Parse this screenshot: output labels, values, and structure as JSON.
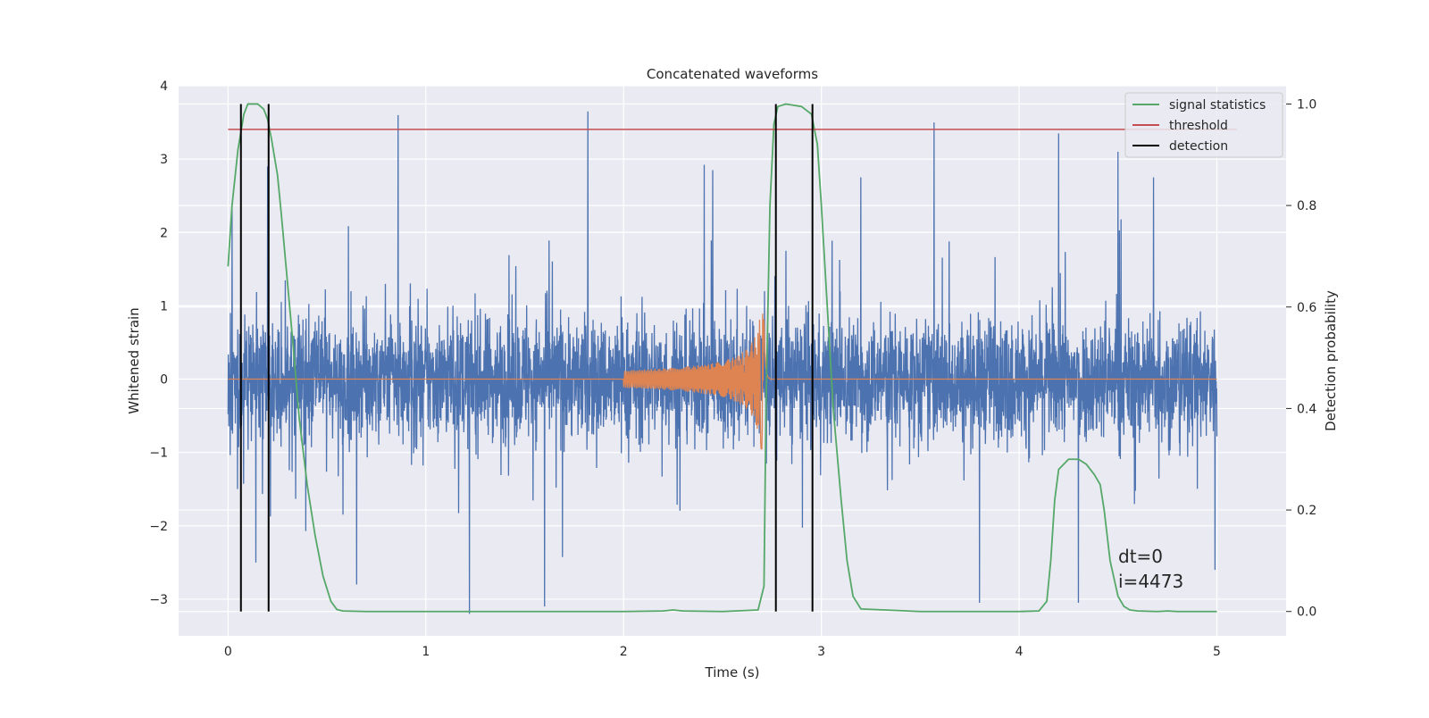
{
  "chart_data": {
    "type": "line",
    "title": "Concatenated waveforms",
    "xlabel": "Time (s)",
    "ylabel": "Whitened strain",
    "y2label": "Detection probability",
    "xlim": [
      -0.25,
      5.35
    ],
    "ylim": [
      -3.5,
      4.0
    ],
    "y2lim": [
      -0.048,
      1.036
    ],
    "x_ticks": [
      0,
      1,
      2,
      3,
      4,
      5
    ],
    "x_tick_labels": [
      "0",
      "1",
      "2",
      "3",
      "4",
      "5"
    ],
    "y_ticks": [
      -3,
      -2,
      -1,
      0,
      1,
      2,
      3,
      4
    ],
    "y_tick_labels": [
      "−3",
      "−2",
      "−1",
      "0",
      "1",
      "2",
      "3",
      "4"
    ],
    "y2_ticks": [
      0.0,
      0.2,
      0.4,
      0.6,
      0.8,
      1.0
    ],
    "y2_tick_labels": [
      "0.0",
      "0.2",
      "0.4",
      "0.6",
      "0.8",
      "1.0"
    ],
    "grid": true,
    "legend_position": "top-right",
    "legend": [
      {
        "label": "signal statistics",
        "color": "#55a868"
      },
      {
        "label": "threshold",
        "color": "#c44e52"
      },
      {
        "label": "detection",
        "color": "#000000"
      }
    ],
    "annotations": [
      "dt=0",
      "i=4473"
    ],
    "colors": {
      "noise": "#4c72b0",
      "injection": "#dd8452",
      "statistic": "#55a868",
      "threshold": "#c44e52",
      "detection": "#000000",
      "plot_background": "#eaeaf2",
      "grid": "#ffffff"
    },
    "series": [
      {
        "kind": "whitened-strain-noise",
        "color": "#4c72b0",
        "x_range": [
          0,
          5
        ],
        "typical_amplitude": 1.5,
        "peaks": [
          {
            "x": 0.02,
            "y": 2.35
          },
          {
            "x": 0.14,
            "y": -2.5
          },
          {
            "x": 0.2,
            "y": 2.9
          },
          {
            "x": 0.65,
            "y": -2.8
          },
          {
            "x": 0.86,
            "y": 3.6
          },
          {
            "x": 1.22,
            "y": -3.2
          },
          {
            "x": 1.6,
            "y": -3.1
          },
          {
            "x": 1.82,
            "y": 3.65
          },
          {
            "x": 2.45,
            "y": 2.85
          },
          {
            "x": 3.2,
            "y": 2.75
          },
          {
            "x": 3.57,
            "y": 3.5
          },
          {
            "x": 3.8,
            "y": -3.05
          },
          {
            "x": 4.2,
            "y": 3.35
          },
          {
            "x": 4.3,
            "y": -3.05
          },
          {
            "x": 4.5,
            "y": 3.1
          },
          {
            "x": 4.68,
            "y": 2.75
          },
          {
            "x": 4.99,
            "y": -2.6
          }
        ]
      },
      {
        "kind": "injected-chirp",
        "color": "#dd8452",
        "x_range": [
          0,
          5
        ],
        "chirp_start": 2.0,
        "chirp_end": 2.71,
        "amplitude_start": 0.12,
        "amplitude_peak": 1.3,
        "amplitude_trough": -0.95
      },
      {
        "name": "signal statistics",
        "axis": "right",
        "color": "#55a868",
        "x": [
          0,
          0.02,
          0.05,
          0.08,
          0.1,
          0.12,
          0.15,
          0.18,
          0.2,
          0.22,
          0.25,
          0.27,
          0.3,
          0.33,
          0.36,
          0.4,
          0.44,
          0.48,
          0.52,
          0.55,
          0.58,
          0.7,
          1.0,
          1.5,
          2.0,
          2.2,
          2.25,
          2.3,
          2.5,
          2.68,
          2.71,
          2.72,
          2.74,
          2.76,
          2.78,
          2.82,
          2.9,
          2.95,
          2.98,
          3.0,
          3.03,
          3.06,
          3.1,
          3.13,
          3.16,
          3.2,
          3.5,
          4.0,
          4.1,
          4.14,
          4.16,
          4.18,
          4.2,
          4.25,
          4.3,
          4.34,
          4.38,
          4.41,
          4.43,
          4.46,
          4.5,
          4.53,
          4.56,
          4.6,
          4.7,
          4.75,
          4.8,
          5.0
        ],
        "y": [
          0.68,
          0.8,
          0.91,
          0.98,
          1.0,
          1.0,
          1.0,
          0.99,
          0.97,
          0.93,
          0.86,
          0.78,
          0.65,
          0.52,
          0.38,
          0.25,
          0.15,
          0.07,
          0.02,
          0.004,
          0.001,
          0.0,
          0.0,
          0.0,
          0.0,
          0.001,
          0.003,
          0.001,
          0.0,
          0.003,
          0.05,
          0.4,
          0.8,
          0.96,
          0.995,
          1.0,
          0.995,
          0.98,
          0.92,
          0.8,
          0.6,
          0.4,
          0.22,
          0.1,
          0.03,
          0.005,
          0.0,
          0.0,
          0.001,
          0.02,
          0.1,
          0.22,
          0.28,
          0.3,
          0.3,
          0.29,
          0.27,
          0.25,
          0.2,
          0.1,
          0.03,
          0.01,
          0.003,
          0.001,
          0.0,
          0.001,
          0.0,
          0.0
        ]
      },
      {
        "name": "threshold",
        "axis": "right",
        "color": "#c44e52",
        "x": [
          0,
          5.1
        ],
        "y": [
          0.95,
          0.95
        ]
      }
    ],
    "detections": [
      0.065,
      0.205,
      2.77,
      2.955
    ]
  }
}
